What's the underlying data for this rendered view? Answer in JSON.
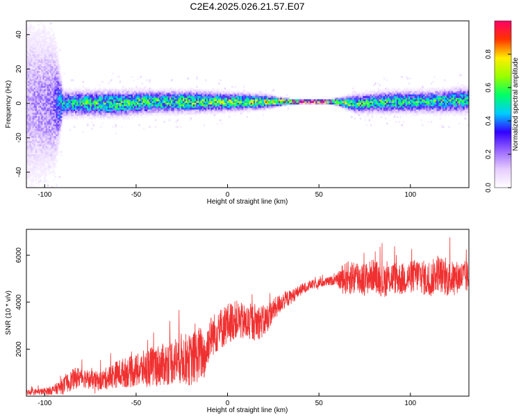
{
  "figure": {
    "title": "C2E4.2025.026.21.57.E07"
  },
  "chart_data": [
    {
      "type": "heatmap",
      "title": "C2E4.2025.026.21.57.E07",
      "xlabel": "Height of straight line (km)",
      "ylabel": "Frequency (Hz)",
      "xlim": [
        -110,
        132
      ],
      "ylim": [
        -49,
        48
      ],
      "x_ticks": [
        -100,
        -50,
        0,
        50,
        100
      ],
      "x_tick_labels": [
        "-100",
        "-50",
        "0",
        "50",
        "100"
      ],
      "y_ticks": [
        -40,
        -20,
        0,
        20,
        40
      ],
      "y_tick_labels": [
        "-40",
        "-20",
        "0",
        "20",
        "40"
      ],
      "grid": false,
      "colorbar": {
        "label": "Normalized spectral amplitude",
        "range": [
          0,
          1
        ],
        "ticks": [
          0.0,
          0.2,
          0.4,
          0.6,
          0.8
        ],
        "tick_labels": [
          "0.0",
          "0.2",
          "0.4",
          "0.6",
          "0.8"
        ],
        "colormap": [
          "#ffffff",
          "#e6ccff",
          "#9966ff",
          "#3300ff",
          "#00ccff",
          "#00ff66",
          "#99ff00",
          "#ffee00",
          "#ff3300",
          "#ff0066"
        ]
      },
      "profile": {
        "x": [
          -110,
          -95,
          -90,
          -80,
          -60,
          -40,
          -20,
          0,
          20,
          30,
          40,
          50,
          55,
          60,
          70,
          90,
          110,
          132
        ],
        "center_frequency": [
          0,
          0,
          0,
          0,
          0,
          1,
          1,
          1,
          1,
          1,
          1,
          1,
          1,
          1,
          0,
          1,
          1,
          2
        ],
        "half_width": [
          48,
          40,
          7,
          7,
          7,
          6,
          6,
          5,
          4,
          2,
          1,
          1,
          1,
          2,
          5,
          6,
          6,
          7
        ],
        "peak_amplitude": [
          0.2,
          0.25,
          0.5,
          0.55,
          0.6,
          0.6,
          0.62,
          0.65,
          0.7,
          0.85,
          1.0,
          1.0,
          0.95,
          0.8,
          0.6,
          0.55,
          0.55,
          0.55
        ]
      }
    },
    {
      "type": "line",
      "title": "",
      "xlabel": "Height of straight line (km)",
      "ylabel": "SNR (10 * v/v)",
      "xlim": [
        -110,
        132
      ],
      "ylim": [
        0,
        7100
      ],
      "x_ticks": [
        -100,
        -50,
        0,
        50,
        100
      ],
      "x_tick_labels": [
        "-100",
        "-50",
        "0",
        "50",
        "100"
      ],
      "y_ticks": [
        2000,
        4000,
        6000
      ],
      "y_tick_labels": [
        "2000",
        "4000",
        "6000"
      ],
      "grid": false,
      "series": [
        {
          "name": "",
          "color": "#f03030",
          "x": [
            -110,
            -100,
            -95,
            -90,
            -85,
            -80,
            -75,
            -70,
            -65,
            -60,
            -55,
            -50,
            -45,
            -40,
            -35,
            -30,
            -25,
            -20,
            -15,
            -12,
            -10,
            -5,
            0,
            5,
            10,
            15,
            20,
            25,
            30,
            35,
            40,
            45,
            50,
            55,
            60,
            62,
            65,
            70,
            75,
            80,
            85,
            90,
            95,
            100,
            105,
            110,
            115,
            120,
            125,
            132
          ],
          "y": [
            150,
            180,
            250,
            400,
            650,
            800,
            650,
            600,
            750,
            900,
            950,
            1000,
            1100,
            1200,
            1250,
            1400,
            1500,
            1400,
            1700,
            1600,
            2400,
            2700,
            3000,
            3200,
            3000,
            3100,
            3100,
            3600,
            4000,
            4200,
            4500,
            4700,
            4800,
            4850,
            4950,
            4900,
            4950,
            5000,
            4900,
            5100,
            4800,
            5000,
            4900,
            5000,
            5100,
            4800,
            5200,
            4900,
            5000,
            5000
          ],
          "spread": [
            120,
            150,
            200,
            350,
            450,
            450,
            400,
            400,
            500,
            600,
            650,
            700,
            800,
            900,
            900,
            1000,
            1100,
            1100,
            1200,
            1000,
            900,
            900,
            900,
            800,
            800,
            800,
            700,
            500,
            400,
            300,
            250,
            200,
            200,
            200,
            200,
            600,
            700,
            800,
            700,
            700,
            700,
            700,
            700,
            700,
            750,
            750,
            800,
            750,
            700,
            700
          ]
        }
      ]
    }
  ]
}
